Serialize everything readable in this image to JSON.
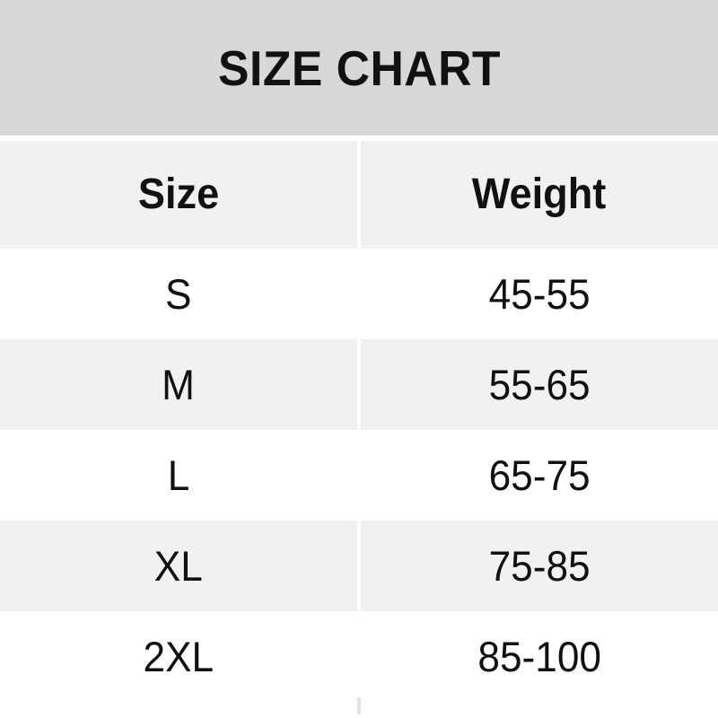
{
  "title": "SIZE CHART",
  "table": {
    "headers": [
      "Size",
      "Weight"
    ],
    "rows": [
      {
        "size": "S",
        "weight": "45-55"
      },
      {
        "size": "M",
        "weight": "55-65"
      },
      {
        "size": "L",
        "weight": "65-75"
      },
      {
        "size": "XL",
        "weight": "75-85"
      },
      {
        "size": "2XL",
        "weight": "85-100"
      }
    ]
  },
  "colors": {
    "banner_bg": "#d8d8d8",
    "row_alt_bg": "#f1f1f1",
    "row_bg": "#ffffff",
    "text": "#111111"
  },
  "chart_data": {
    "type": "table",
    "title": "SIZE CHART",
    "columns": [
      "Size",
      "Weight"
    ],
    "rows": [
      [
        "S",
        "45-55"
      ],
      [
        "M",
        "55-65"
      ],
      [
        "L",
        "65-75"
      ],
      [
        "XL",
        "75-85"
      ],
      [
        "2XL",
        "85-100"
      ]
    ]
  }
}
